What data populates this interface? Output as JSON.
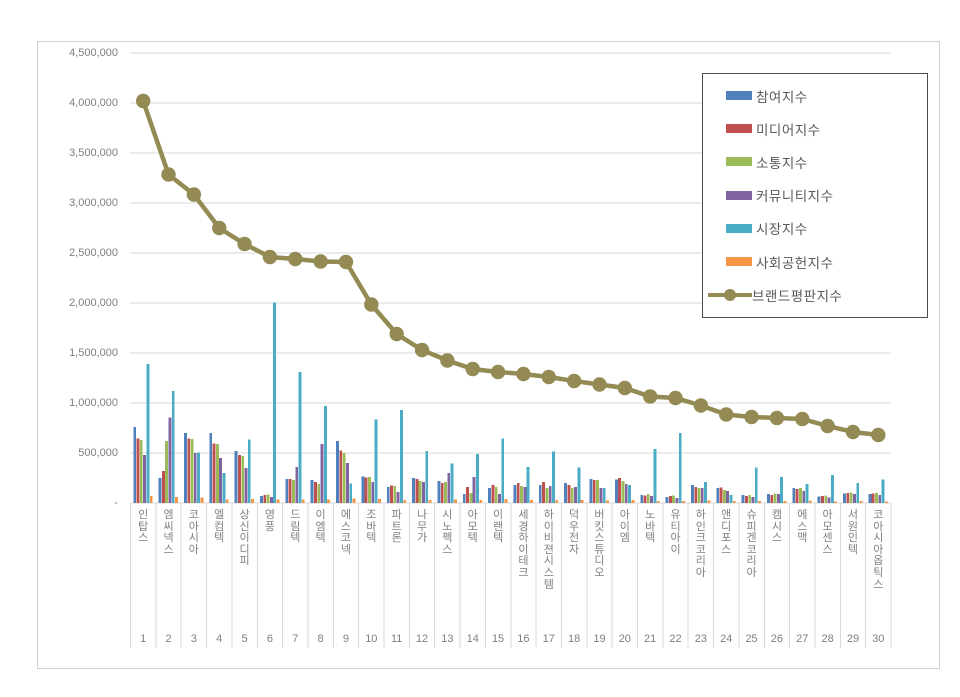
{
  "chart_data": {
    "type": "bar+line",
    "title": "",
    "y_axis": {
      "min": 0,
      "max": 4500000,
      "step": 500000,
      "zero_label": "-"
    },
    "grid": true,
    "legend_position": "top-right",
    "categories": [
      "인탑스",
      "엠씨넥스",
      "코아시아",
      "엘컴텍",
      "상신이디피",
      "영풍",
      "드림텍",
      "이엠텍",
      "에스코넥",
      "조바텍",
      "파트론",
      "나무가",
      "시노펙스",
      "아모텍",
      "이랜텍",
      "세경하이테크",
      "하이비젼시스템",
      "덕우전자",
      "버킷스튜디오",
      "아이엠",
      "노바텍",
      "유티아이",
      "하인크코리아",
      "앤디포스",
      "슈피겐코리아",
      "캠시스",
      "에스맥",
      "아모센스",
      "서원인텍",
      "코아시아옵틱스"
    ],
    "ranks": [
      "1",
      "2",
      "3",
      "4",
      "5",
      "6",
      "7",
      "8",
      "9",
      "10",
      "11",
      "12",
      "13",
      "14",
      "15",
      "16",
      "17",
      "18",
      "19",
      "20",
      "21",
      "22",
      "23",
      "24",
      "25",
      "26",
      "27",
      "28",
      "29",
      "30"
    ],
    "series": [
      {
        "id": "participation",
        "name": "참여지수",
        "type": "bar",
        "color": "#4F81BD",
        "values": [
          760000,
          250000,
          700000,
          700000,
          520000,
          70000,
          240000,
          230000,
          620000,
          265000,
          160000,
          250000,
          220000,
          90000,
          150000,
          180000,
          180000,
          200000,
          240000,
          235000,
          80000,
          60000,
          180000,
          150000,
          80000,
          90000,
          150000,
          65000,
          95000,
          90000
        ]
      },
      {
        "id": "media",
        "name": "미디어지수",
        "type": "bar",
        "color": "#C0504D",
        "values": [
          645000,
          320000,
          645000,
          595000,
          480000,
          80000,
          240000,
          210000,
          525000,
          255000,
          175000,
          240000,
          200000,
          160000,
          180000,
          200000,
          210000,
          180000,
          230000,
          250000,
          75000,
          70000,
          160000,
          155000,
          70000,
          80000,
          140000,
          70000,
          100000,
          95000
        ]
      },
      {
        "id": "communication",
        "name": "소통지수",
        "type": "bar",
        "color": "#9BBB59",
        "values": [
          630000,
          620000,
          640000,
          590000,
          470000,
          85000,
          230000,
          190000,
          500000,
          260000,
          170000,
          220000,
          210000,
          100000,
          160000,
          170000,
          150000,
          150000,
          230000,
          220000,
          90000,
          75000,
          150000,
          130000,
          80000,
          95000,
          150000,
          75000,
          105000,
          100000
        ]
      },
      {
        "id": "community",
        "name": "커뮤니티지수",
        "type": "bar",
        "color": "#8064A2",
        "values": [
          480000,
          855000,
          500000,
          450000,
          350000,
          60000,
          360000,
          590000,
          400000,
          210000,
          110000,
          210000,
          300000,
          260000,
          90000,
          160000,
          170000,
          160000,
          150000,
          190000,
          70000,
          50000,
          150000,
          120000,
          60000,
          90000,
          120000,
          55000,
          90000,
          80000
        ]
      },
      {
        "id": "market",
        "name": "시장지수",
        "type": "bar",
        "color": "#4BACC6",
        "values": [
          1390000,
          1120000,
          505000,
          300000,
          635000,
          2005000,
          1310000,
          970000,
          195000,
          835000,
          930000,
          520000,
          395000,
          490000,
          645000,
          360000,
          515000,
          355000,
          150000,
          180000,
          540000,
          700000,
          210000,
          80000,
          355000,
          260000,
          190000,
          280000,
          200000,
          235000
        ]
      },
      {
        "id": "social",
        "name": "사회공헌지수",
        "type": "bar",
        "color": "#F79646",
        "values": [
          70000,
          60000,
          55000,
          35000,
          40000,
          35000,
          35000,
          35000,
          45000,
          40000,
          30000,
          30000,
          35000,
          30000,
          40000,
          30000,
          30000,
          30000,
          25000,
          30000,
          20000,
          20000,
          25000,
          20000,
          20000,
          20000,
          25000,
          15000,
          20000,
          15000
        ]
      },
      {
        "id": "brand",
        "name": "브랜드평판지수",
        "type": "line",
        "color": "#948A54",
        "values": [
          4020000,
          3285000,
          3085000,
          2750000,
          2590000,
          2460000,
          2440000,
          2415000,
          2410000,
          1985000,
          1690000,
          1530000,
          1425000,
          1340000,
          1310000,
          1290000,
          1260000,
          1220000,
          1185000,
          1150000,
          1065000,
          1050000,
          975000,
          885000,
          860000,
          850000,
          840000,
          770000,
          710000,
          680000
        ]
      }
    ]
  }
}
